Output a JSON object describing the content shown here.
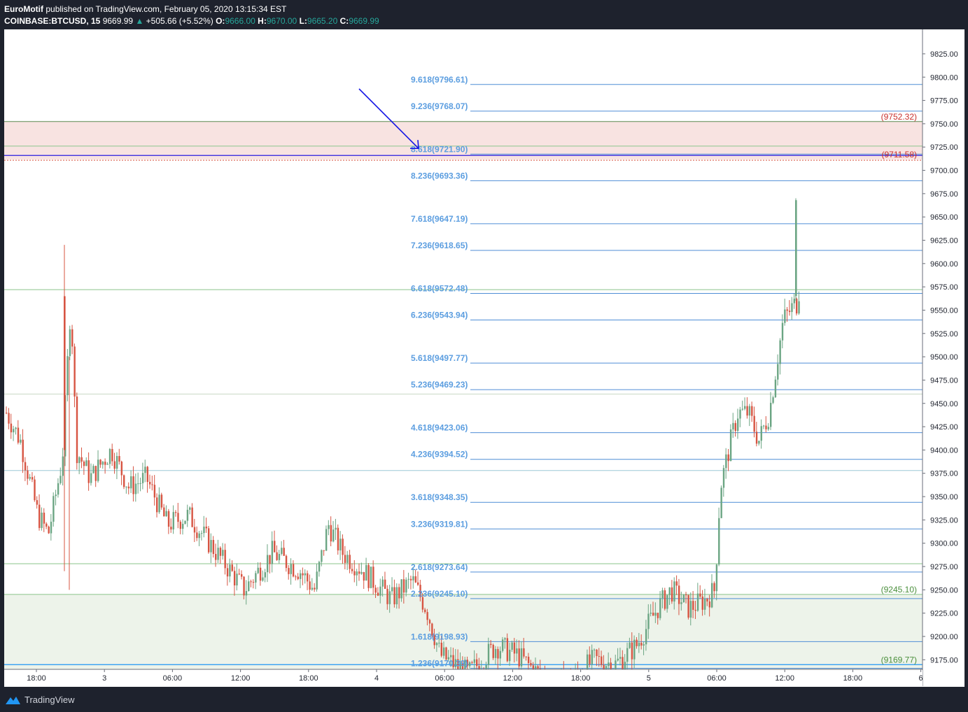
{
  "header": {
    "author": "EuroMotif",
    "published_text": "published on TradingView.com, February 05, 2020 13:15:34 EST",
    "symbol": "COINBASE:BTCUSD, 15",
    "last": "9669.99",
    "change": "+505.66 (+5.52%)",
    "o_label": "O:",
    "o_val": "9666.00",
    "h_label": "H:",
    "h_val": "9670.00",
    "l_label": "L:",
    "l_val": "9665.20",
    "c_label": "C:",
    "c_val": "9669.99"
  },
  "footer": {
    "brand": "TradingView"
  },
  "colors": {
    "background": "#ffffff",
    "up": "#6ba583",
    "down": "#d75442",
    "fib": "#4f8ed6",
    "zone_red": "#f8e3e1",
    "zone_green": "#edf3ea",
    "arrow": "#1515e6"
  },
  "chart_data": {
    "type": "candlestick",
    "symbol": "COINBASE:BTCUSD",
    "timeframe": "15",
    "ylim": [
      9160,
      9840
    ],
    "y_ticks": [
      "9825.00",
      "9800.00",
      "9775.00",
      "9750.00",
      "9725.00",
      "9700.00",
      "9675.00",
      "9650.00",
      "9625.00",
      "9600.00",
      "9575.00",
      "9550.00",
      "9525.00",
      "9500.00",
      "9475.00",
      "9450.00",
      "9425.00",
      "9400.00",
      "9375.00",
      "9350.00",
      "9325.00",
      "9300.00",
      "9275.00",
      "9250.00",
      "9225.00",
      "9200.00",
      "9175.00"
    ],
    "x_ticks": [
      "18:00",
      "3",
      "06:00",
      "12:00",
      "18:00",
      "4",
      "06:00",
      "12:00",
      "18:00",
      "5",
      "06:00",
      "12:00",
      "18:00",
      "6"
    ],
    "fib_levels": [
      {
        "label": "9.618(9796.61)",
        "value": 9796.61
      },
      {
        "label": "9.236(9768.07)",
        "value": 9768.07
      },
      {
        "label": "8.618(9721.90)",
        "value": 9721.9
      },
      {
        "label": "8.236(9693.36)",
        "value": 9693.36
      },
      {
        "label": "7.618(9647.19)",
        "value": 9647.19
      },
      {
        "label": "7.236(9618.65)",
        "value": 9618.65
      },
      {
        "label": "6.618(9572.48)",
        "value": 9572.48
      },
      {
        "label": "6.236(9543.94)",
        "value": 9543.94
      },
      {
        "label": "5.618(9497.77)",
        "value": 9497.77
      },
      {
        "label": "5.236(9469.23)",
        "value": 9469.23
      },
      {
        "label": "4.618(9423.06)",
        "value": 9423.06
      },
      {
        "label": "4.236(9394.52)",
        "value": 9394.52
      },
      {
        "label": "3.618(9348.35)",
        "value": 9348.35
      },
      {
        "label": "3.236(9319.81)",
        "value": 9319.81
      },
      {
        "label": "2.618(9273.64)",
        "value": 9273.64
      },
      {
        "label": "2.236(9245.10)",
        "value": 9245.1
      },
      {
        "label": "1.618(9198.93)",
        "value": 9198.93
      },
      {
        "label": "1.236(9170.39)",
        "value": 9170.39
      }
    ],
    "zones": [
      {
        "name": "resistance",
        "top": 9752.32,
        "bottom": 9711.58,
        "top_label": "(9752.32)",
        "bottom_label": "(9711.58)"
      },
      {
        "name": "support",
        "top": 9245.1,
        "bottom": 9169.77,
        "top_label": "(9245.10)",
        "bottom_label": "(9169.77)"
      }
    ],
    "horizontal_lines": [
      9752.32,
      9726,
      9716,
      9572,
      9460,
      9378,
      9278,
      9245.1,
      9169.77
    ],
    "arrow": {
      "from_price": 9765,
      "to_price": 9722
    },
    "last_price": 9669.99
  }
}
